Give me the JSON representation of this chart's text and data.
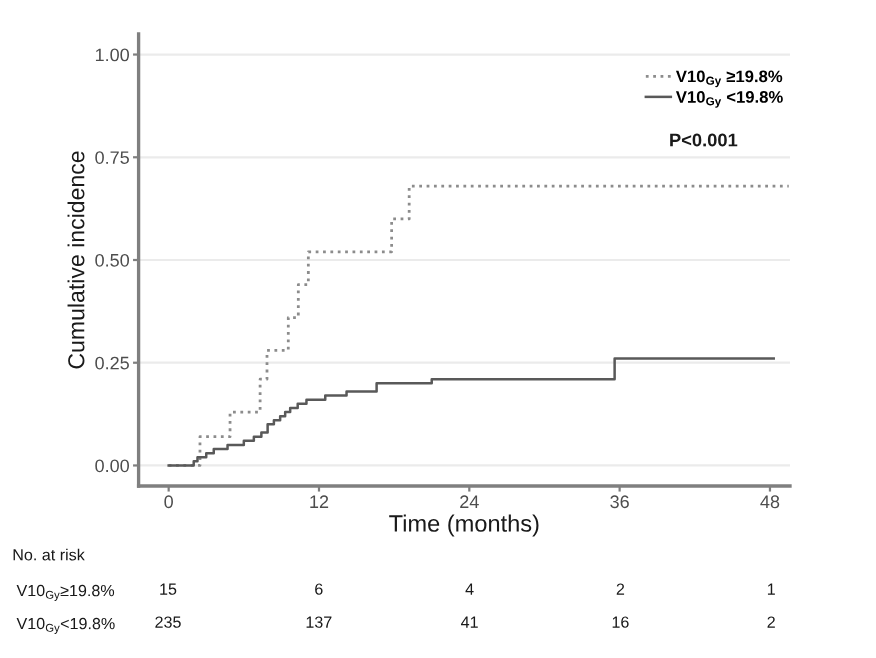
{
  "chart_data": [
    {
      "type": "step",
      "xlabel": "Time (months)",
      "ylabel": "Cumulative incidence",
      "xlim": [
        -2.4,
        49.6
      ],
      "xticks": [
        0,
        12,
        24,
        36,
        48
      ],
      "ylim": [
        -0.05,
        1.05
      ],
      "yticks": [
        {
          "value": 0,
          "label": "0.00"
        },
        {
          "value": 0.25,
          "label": "0.25"
        },
        {
          "value": 0.5,
          "label": "0.50"
        },
        {
          "value": 0.75,
          "label": "0.75"
        },
        {
          "value": 1,
          "label": "1.00"
        }
      ],
      "grid": "y",
      "legend": "top right",
      "annotations": [
        "P<0.001"
      ],
      "series": [
        {
          "name": "V10$_{Gy}$ ≥19.8%",
          "color": "#8c8c8c",
          "line_style": "dotted",
          "x": [
            0,
            2.5,
            4.9,
            7.3,
            7.85,
            9.55,
            10.35,
            11.15,
            17.8,
            19.2,
            49.5
          ],
          "values": [
            0,
            0.07,
            0.13,
            0.21,
            0.28,
            0.36,
            0.44,
            0.52,
            0.6,
            0.68,
            0.68
          ]
        },
        {
          "name": "V10$_{Gy}$ <19.8%",
          "color": "#595959",
          "line_style": "solid",
          "x": [
            0,
            2.0,
            2.3,
            3.0,
            3.6,
            4.7,
            6.0,
            6.8,
            7.4,
            7.9,
            8.4,
            8.9,
            9.3,
            9.7,
            10.3,
            11.0,
            12.5,
            14.2,
            16.6,
            21.0,
            35.6,
            48.3
          ],
          "values": [
            0,
            0.01,
            0.02,
            0.03,
            0.04,
            0.05,
            0.06,
            0.07,
            0.08,
            0.1,
            0.11,
            0.12,
            0.13,
            0.14,
            0.15,
            0.16,
            0.17,
            0.18,
            0.2,
            0.21,
            0.26,
            0.26
          ]
        }
      ]
    },
    {
      "type": "heatmap",
      "title": "No. at risk",
      "categories": [
        null,
        null,
        null,
        null,
        null
      ],
      "y_categories": [
        "V10$_{Gy}$≥19.8%",
        "V10$_{Gy}$<19.8%"
      ],
      "data_labels": true,
      "cells": [
        [
          15,
          6,
          4,
          2,
          1
        ],
        [
          235,
          137,
          41,
          16,
          2
        ]
      ]
    }
  ]
}
